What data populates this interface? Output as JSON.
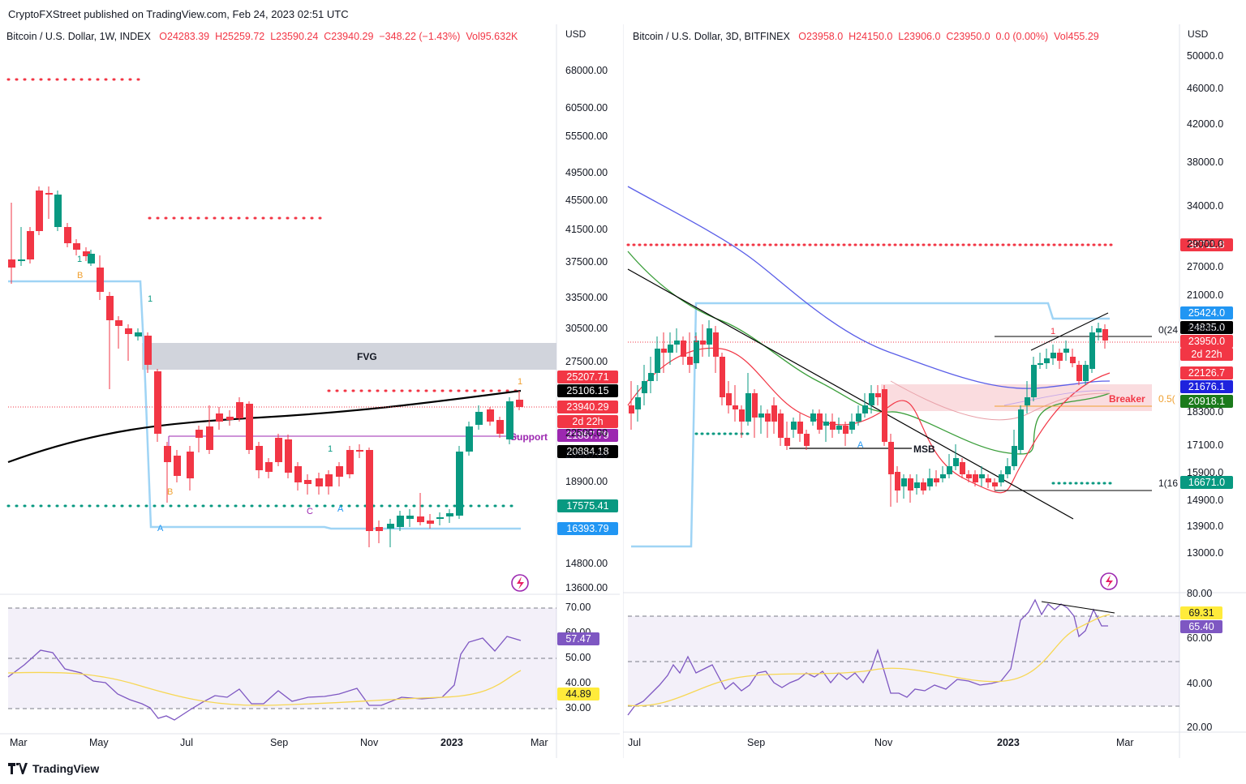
{
  "published": "CryptoFXStreet published on TradingView.com, Feb 24, 2023 02:51 UTC",
  "brand": "TradingView",
  "colors": {
    "bull": "#089981",
    "bear": "#f23645",
    "support": "#9c27b0",
    "rsi": "#7e57c2"
  },
  "chart_data": [
    {
      "type": "candlestick",
      "header": {
        "symbol": "Bitcoin / U.S. Dollar, 1W, INDEX",
        "o": "O24283.39",
        "h": "H25259.72",
        "l": "L23590.24",
        "c": "C23940.29",
        "chg": "−348.22 (−1.43%)",
        "vol": "Vol95.632K"
      },
      "currency": "USD",
      "y_ticks": [
        "68000.00",
        "60500.00",
        "55500.00",
        "49500.00",
        "45500.00",
        "41500.00",
        "37500.00",
        "33500.00",
        "30500.00",
        "27500.00",
        "22500.00",
        "20500.00",
        "18900.00",
        "14800.00",
        "13600.00"
      ],
      "x_ticks": [
        "Mar",
        "May",
        "Jul",
        "Sep",
        "Nov",
        "2023",
        "Mar"
      ],
      "price_tags": [
        {
          "label": "25207.71",
          "color": "#f23645"
        },
        {
          "label": "25106.15",
          "color": "#000000"
        },
        {
          "label": "23940.29",
          "color": "#f23645"
        },
        {
          "label": "2d 22h",
          "color": "#f23645"
        },
        {
          "label": "21867.79",
          "color": "#9c27b0"
        },
        {
          "label": "20884.18",
          "color": "#000000"
        },
        {
          "label": "17575.41",
          "color": "#089981"
        },
        {
          "label": "16393.79",
          "color": "#2196f3"
        }
      ],
      "annotations": {
        "fvg": "FVG",
        "support": "Support",
        "marks": [
          "B",
          "B",
          "A",
          "C",
          "A",
          "1",
          "1",
          "1",
          "1"
        ]
      },
      "rsi": {
        "ticks": [
          "70.00",
          "60.00",
          "50.00",
          "40.00",
          "30.00"
        ],
        "tags": [
          "57.47",
          "44.89"
        ]
      }
    },
    {
      "type": "candlestick",
      "header": {
        "symbol": "Bitcoin / U.S. Dollar, 3D, BITFINEX",
        "o": "O23958.0",
        "h": "H24150.0",
        "l": "L23906.0",
        "c": "C23950.0",
        "chg": "0.0 (0.00%)",
        "vol": "Vol455.29"
      },
      "currency": "USD",
      "y_ticks": [
        "50000.0",
        "46000.0",
        "42000.0",
        "38000.0",
        "34000.0",
        "29000.0",
        "27000.0",
        "21000.0",
        "19900.0",
        "18300.0",
        "17100.0",
        "15900.0",
        "14900.0",
        "13900.0",
        "13000.0"
      ],
      "x_ticks": [
        "Jul",
        "Sep",
        "Nov",
        "2023",
        "Mar"
      ],
      "price_tags": [
        {
          "label": "30711.8",
          "color": "#f23645"
        },
        {
          "label": "25424.0",
          "color": "#2196f3"
        },
        {
          "label": "24835.0",
          "color": "#000000"
        },
        {
          "label": "23950.0",
          "color": "#f23645"
        },
        {
          "label": "2d 22h",
          "color": "#f23645"
        },
        {
          "label": "22126.7",
          "color": "#f23645"
        },
        {
          "label": "21676.1",
          "color": "#1e22dd"
        },
        {
          "label": "20918.1",
          "color": "#1b7a1b"
        },
        {
          "label": "16671.0",
          "color": "#089981"
        }
      ],
      "annotations": {
        "msb": "MSB",
        "breaker": "Breaker",
        "fib0": "0(24",
        "fib05": "0.5(",
        "fib1": "1(16",
        "marks": [
          "A",
          "1",
          "1"
        ]
      },
      "rsi": {
        "ticks": [
          "80.00",
          "60.00",
          "40.00",
          "20.00"
        ],
        "tags": [
          "69.31",
          "65.40"
        ]
      }
    }
  ]
}
